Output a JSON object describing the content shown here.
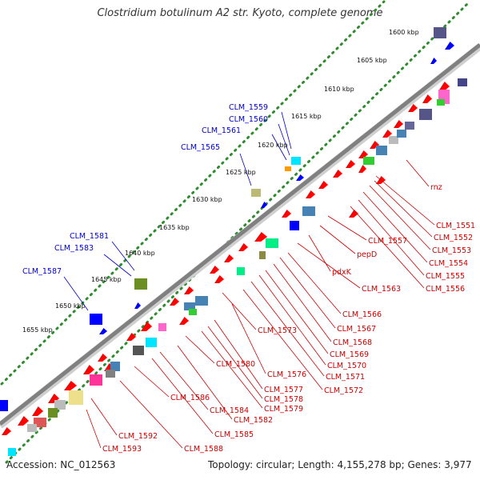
{
  "title": "Clostridium botulinum A2 str. Kyoto, complete genome",
  "footer": {
    "accession": "Accession: NC_012563",
    "summary": "Topology: circular; Length: 4,155,278 bp; Genes: 3,977"
  },
  "colors": {
    "backbone": "#808080",
    "forward_gene": "#ff0000",
    "reverse_gene": "#0000ff",
    "label_forward": "#cc0000",
    "label_reverse": "#0000cc",
    "tick_dots": "#2e8b2e"
  },
  "scale_ticks": [
    "1600 kbp",
    "1605 kbp",
    "1610 kbp",
    "1615 kbp",
    "1620 kbp",
    "1625 kbp",
    "1630 kbp",
    "1635 kbp",
    "1640 kbp",
    "1645 kbp",
    "1650 kbp",
    "1655 kbp"
  ],
  "labels_reverse": [
    "CLM_1559",
    "CLM_1560",
    "CLM_1561",
    "CLM_1565",
    "CLM_1581",
    "CLM_1583",
    "CLM_1587"
  ],
  "labels_forward": [
    "rnz",
    "CLM_1551",
    "CLM_1552",
    "CLM_1553",
    "CLM_1554",
    "CLM_1555",
    "CLM_1556",
    "CLM_1557",
    "pepD",
    "pdxK",
    "CLM_1563",
    "CLM_1566",
    "CLM_1567",
    "CLM_1568",
    "CLM_1569",
    "CLM_1570",
    "CLM_1571",
    "CLM_1572",
    "CLM_1573",
    "CLM_1576",
    "CLM_1577",
    "CLM_1578",
    "CLM_1579",
    "CLM_1580",
    "CLM_1582",
    "CLM_1584",
    "CLM_1585",
    "CLM_1586",
    "CLM_1588",
    "CLM_1592",
    "CLM_1593"
  ]
}
